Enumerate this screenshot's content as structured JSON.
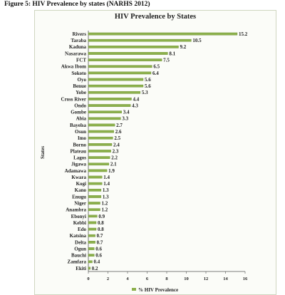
{
  "figure_caption": "Figure 5: HIV Prevalence by states (NARHS 2012)",
  "chart_data": {
    "type": "bar",
    "orientation": "horizontal",
    "title": "HIV Prevalence by States",
    "ylabel": "States",
    "xlabel": "",
    "xlim": [
      0,
      16
    ],
    "xticks": [
      "0",
      "2",
      "4",
      "6",
      "8",
      "10",
      "12",
      "14",
      "16"
    ],
    "grid": false,
    "legend_position": "bottom",
    "bar_color": "#8cb04c",
    "categories": [
      "Rivers",
      "Taraba",
      "Kaduna",
      "Nasarawa",
      "FCT",
      "Akwa Ibom",
      "Sokoto",
      "Oyo",
      "Benue",
      "Yobe",
      "Cross River",
      "Ondo",
      "Gombe",
      "Abia",
      "Bayelsa",
      "Osun",
      "Imo",
      "Borno",
      "Plateau",
      "Lagos",
      "Jigawa",
      "Adamawa",
      "Kwara",
      "Kogi",
      "Kano",
      "Enugu",
      "Niger",
      "Anambra",
      "Ebonyi",
      "Kebbi",
      "Edo",
      "Katsina",
      "Delta",
      "Ogun",
      "Bauchi",
      "Zamfara",
      "Ekiti"
    ],
    "series": [
      {
        "name": "% HIV Prevalence",
        "values": [
          15.2,
          10.5,
          9.2,
          8.1,
          7.5,
          6.5,
          6.4,
          5.6,
          5.6,
          5.3,
          4.4,
          4.3,
          3.4,
          3.3,
          2.7,
          2.6,
          2.5,
          2.4,
          2.3,
          2.2,
          2.1,
          1.9,
          1.4,
          1.4,
          1.3,
          1.3,
          1.2,
          1.2,
          0.9,
          0.8,
          0.8,
          0.7,
          0.7,
          0.6,
          0.6,
          0.4,
          0.2
        ],
        "labels": [
          "15.2",
          "10.5",
          "9.2",
          "8.1",
          "7.5",
          "6.5",
          "6.4",
          "5.6",
          "5.6",
          "5.3",
          "4.4",
          "4.3",
          "3.4",
          "3.3",
          "2.7",
          "2.6",
          "2.5",
          "2.4",
          "2.3",
          "2.2",
          "2.1",
          "1.9",
          "1.4",
          "1.4",
          "1.3",
          "1.3",
          "1.2",
          "1.2",
          "0.9",
          "0.8",
          "0.8",
          "0.7",
          "0.7",
          "0.6",
          "0.6",
          "0.4",
          "0.2"
        ]
      }
    ]
  }
}
